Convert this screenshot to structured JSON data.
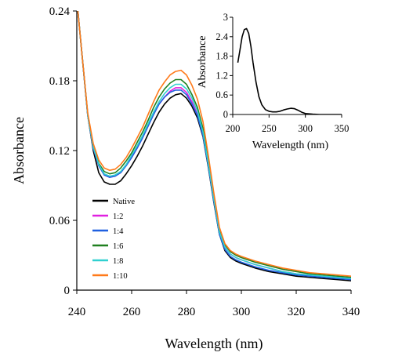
{
  "chart_data": [
    {
      "type": "line",
      "xlabel": "Wavelength (nm)",
      "ylabel": "Absorbance",
      "xlim": [
        240,
        340
      ],
      "ylim": [
        0,
        0.24
      ],
      "xticks": [
        240,
        260,
        280,
        300,
        320,
        340
      ],
      "yticks": [
        0,
        0.06,
        0.12,
        0.18,
        0.24
      ],
      "ytick_labels": [
        "0",
        "0.06",
        "0.12",
        "0.18",
        "0.24"
      ],
      "legend_position": "lower-left",
      "grid": false,
      "x": [
        240,
        242,
        244,
        246,
        248,
        250,
        252,
        254,
        256,
        258,
        260,
        262,
        264,
        266,
        268,
        270,
        272,
        274,
        276,
        278,
        280,
        282,
        284,
        286,
        288,
        290,
        292,
        294,
        296,
        298,
        300,
        305,
        310,
        315,
        320,
        325,
        330,
        335,
        340
      ],
      "series": [
        {
          "name": "Native",
          "color": "#000000",
          "values": [
            0.25,
            0.2,
            0.15,
            0.12,
            0.101,
            0.093,
            0.091,
            0.091,
            0.094,
            0.1,
            0.107,
            0.115,
            0.124,
            0.134,
            0.144,
            0.153,
            0.16,
            0.165,
            0.168,
            0.169,
            0.165,
            0.158,
            0.148,
            0.132,
            0.105,
            0.075,
            0.048,
            0.034,
            0.028,
            0.025,
            0.023,
            0.019,
            0.016,
            0.014,
            0.012,
            0.011,
            0.01,
            0.009,
            0.008
          ]
        },
        {
          "name": "1:2",
          "color": "#e020e0",
          "values": [
            0.25,
            0.2,
            0.15,
            0.122,
            0.107,
            0.099,
            0.097,
            0.098,
            0.101,
            0.107,
            0.114,
            0.122,
            0.131,
            0.141,
            0.151,
            0.16,
            0.166,
            0.171,
            0.174,
            0.174,
            0.17,
            0.162,
            0.151,
            0.134,
            0.107,
            0.077,
            0.05,
            0.037,
            0.031,
            0.028,
            0.026,
            0.022,
            0.019,
            0.016,
            0.014,
            0.013,
            0.012,
            0.011,
            0.01
          ]
        },
        {
          "name": "1:4",
          "color": "#2060e0",
          "values": [
            0.25,
            0.2,
            0.15,
            0.122,
            0.107,
            0.099,
            0.097,
            0.098,
            0.101,
            0.107,
            0.114,
            0.122,
            0.131,
            0.141,
            0.151,
            0.16,
            0.166,
            0.17,
            0.172,
            0.172,
            0.168,
            0.16,
            0.15,
            0.133,
            0.106,
            0.076,
            0.048,
            0.035,
            0.029,
            0.026,
            0.024,
            0.02,
            0.017,
            0.015,
            0.013,
            0.012,
            0.011,
            0.01,
            0.009
          ]
        },
        {
          "name": "1:6",
          "color": "#208020",
          "values": [
            0.25,
            0.2,
            0.151,
            0.124,
            0.109,
            0.102,
            0.1,
            0.101,
            0.105,
            0.111,
            0.118,
            0.127,
            0.136,
            0.146,
            0.157,
            0.166,
            0.173,
            0.178,
            0.181,
            0.181,
            0.177,
            0.168,
            0.157,
            0.139,
            0.111,
            0.08,
            0.052,
            0.039,
            0.033,
            0.03,
            0.028,
            0.024,
            0.021,
            0.018,
            0.016,
            0.014,
            0.013,
            0.012,
            0.011
          ]
        },
        {
          "name": "1:8",
          "color": "#30d0d0",
          "values": [
            0.25,
            0.2,
            0.15,
            0.123,
            0.108,
            0.1,
            0.098,
            0.099,
            0.102,
            0.108,
            0.116,
            0.124,
            0.133,
            0.143,
            0.153,
            0.162,
            0.169,
            0.174,
            0.177,
            0.177,
            0.173,
            0.165,
            0.154,
            0.136,
            0.108,
            0.078,
            0.05,
            0.037,
            0.031,
            0.028,
            0.026,
            0.022,
            0.019,
            0.016,
            0.014,
            0.013,
            0.012,
            0.011,
            0.01
          ]
        },
        {
          "name": "1:10",
          "color": "#ff7a1a",
          "values": [
            0.25,
            0.2,
            0.152,
            0.126,
            0.112,
            0.105,
            0.103,
            0.104,
            0.108,
            0.114,
            0.122,
            0.131,
            0.14,
            0.151,
            0.162,
            0.172,
            0.179,
            0.185,
            0.188,
            0.189,
            0.185,
            0.176,
            0.164,
            0.145,
            0.115,
            0.083,
            0.054,
            0.04,
            0.034,
            0.031,
            0.029,
            0.025,
            0.022,
            0.019,
            0.017,
            0.015,
            0.014,
            0.013,
            0.012
          ]
        }
      ]
    },
    {
      "type": "line",
      "xlabel": "Wavelength (nm)",
      "ylabel": "Absorbance",
      "xlim": [
        200,
        350
      ],
      "ylim": [
        0,
        3
      ],
      "xticks": [
        200,
        250,
        300,
        350
      ],
      "yticks": [
        0,
        0.6,
        1.2,
        1.8,
        2.4,
        3
      ],
      "ytick_labels": [
        "0",
        "0.6",
        "1.2",
        "1.8",
        "2.4",
        "3"
      ],
      "grid": false,
      "x": [
        207,
        210,
        213,
        216,
        219,
        222,
        225,
        228,
        232,
        236,
        240,
        245,
        250,
        255,
        260,
        265,
        270,
        275,
        280,
        285,
        290,
        295,
        300,
        310,
        320,
        330,
        340,
        350
      ],
      "series": [
        {
          "color": "#000000",
          "values": [
            1.6,
            2.0,
            2.4,
            2.62,
            2.65,
            2.5,
            2.1,
            1.6,
            1.0,
            0.55,
            0.3,
            0.15,
            0.1,
            0.08,
            0.08,
            0.1,
            0.14,
            0.17,
            0.19,
            0.18,
            0.13,
            0.07,
            0.03,
            0.01,
            0.0,
            0.0,
            0.0,
            0.0
          ]
        }
      ]
    }
  ]
}
